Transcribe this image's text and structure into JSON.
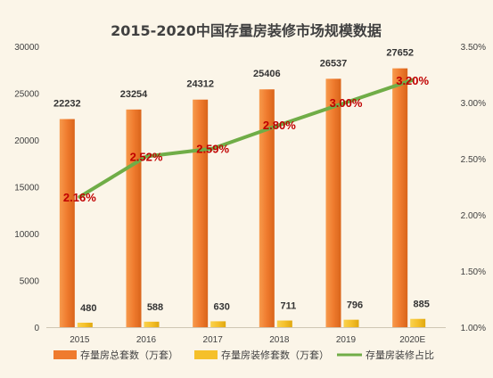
{
  "chart_data": {
    "type": "bar",
    "title": "2015-2020中国存量房装修市场规模数据",
    "categories": [
      "2015",
      "2016",
      "2017",
      "2018",
      "2019",
      "2020E"
    ],
    "series": [
      {
        "name": "存量房总套数（万套）",
        "type": "bar",
        "axis": "left",
        "color": "#ef7b2e",
        "values": [
          22232,
          23254,
          24312,
          25406,
          26537,
          27652
        ],
        "labels": [
          "22232",
          "23254",
          "24312",
          "25406",
          "26537",
          "27652"
        ]
      },
      {
        "name": "存量房装修套数（万套）",
        "type": "bar",
        "axis": "left",
        "color": "#f5c02a",
        "values": [
          480,
          588,
          630,
          711,
          796,
          885
        ],
        "labels": [
          "480",
          "588",
          "630",
          "711",
          "796",
          "885"
        ]
      },
      {
        "name": "存量房装修占比",
        "type": "line",
        "axis": "right",
        "color": "#70ad47",
        "values": [
          2.16,
          2.52,
          2.59,
          2.8,
          3.0,
          3.2
        ],
        "labels": [
          "2.16%",
          "2.52%",
          "2.59%",
          "2.80%",
          "3.00%",
          "3.20%"
        ]
      }
    ],
    "ylim_left": [
      0,
      30000
    ],
    "ylim_right": [
      1.0,
      3.5
    ],
    "yticks_left": [
      "0",
      "5000",
      "10000",
      "15000",
      "20000",
      "25000",
      "30000"
    ],
    "yticks_right": [
      "1.00%",
      "1.50%",
      "2.00%",
      "2.50%",
      "3.00%",
      "3.50%"
    ],
    "grid": false,
    "legend_position": "bottom"
  }
}
